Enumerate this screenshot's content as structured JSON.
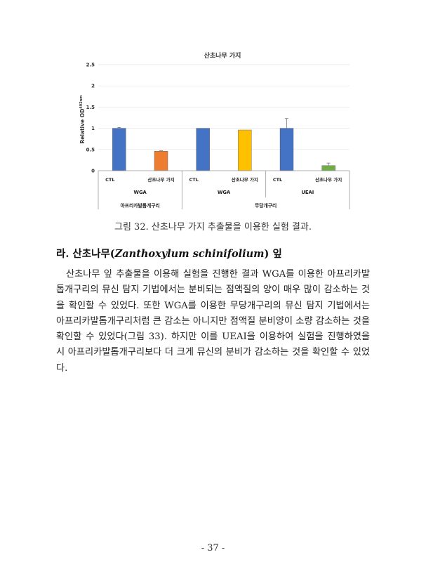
{
  "caption": "그림 32. 산초나무 가지 추출물을 이용한 실험 결과.",
  "heading": {
    "prefix": "라. 산초나무(",
    "latin": "Zanthoxylum schinifolium",
    "suffix": ") 잎"
  },
  "paragraph": "산초나무 잎 추출물을 이용해 실험을 진행한 결과 WGA를 이용한 아프리카발톱개구리의 뮤신 탐지 기법에서는 분비되는 점액질의 양이 매우 많이 감소하는 것을 확인할 수 있었다. 또한 WGA를 이용한 무당개구리의 뮤신 탐지 기법에서는 아프리카발톱개구리처럼 큰 감소는 아니지만 점액질 분비양이 소량 감소하는 것을 확인할 수 있었다(그림 33). 하지만 이를 UEAI을 이용하여 실험을 진행하였을 시 아프리카발톱개구리보다 더 크게 뮤신의 분비가 감소하는 것을 확인할 수 있었다.",
  "page_number": "- 37 -",
  "chart_data": {
    "type": "bar",
    "title": "산초나무 가지",
    "ylabel_main": "Relative OD",
    "ylabel_sup": "492nm",
    "ylim": [
      0,
      2.5
    ],
    "yticks": [
      "0",
      "0.5",
      "1",
      "1.5",
      "2",
      "2.5"
    ],
    "categories": [
      "CTL",
      "산초나무 가지",
      "CTL",
      "산초나무 가지",
      "CTL",
      "산초나무 가지"
    ],
    "values": [
      1.0,
      0.46,
      1.0,
      0.96,
      1.0,
      0.12
    ],
    "errors": [
      0.02,
      0.01,
      0.0,
      0.0,
      0.23,
      0.06
    ],
    "colors": [
      "#4472C4",
      "#ED7D31",
      "#4472C4",
      "#FFC000",
      "#4472C4",
      "#70AD47"
    ],
    "group_labels": [
      "WGA",
      "WGA",
      "UEAI"
    ],
    "species_labels": [
      "아프리카발톱개구리",
      "무당개구리"
    ],
    "grid": true
  }
}
